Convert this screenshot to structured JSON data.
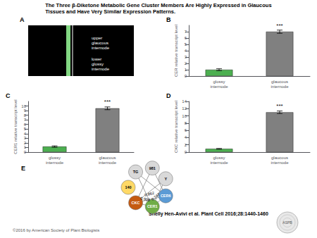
{
  "title": "The Three β-Diketone Metabolic Gene Cluster Members Are Highly Expressed in Glaucous\nTissues and Have Very Similar Expression Patterns.",
  "annotations": [
    "Shelly Hen-Avivi et al. Plant Cell 2016;28:1440-1460",
    "©2016 by American Society of Plant Biologists",
    "ASPB"
  ],
  "chart_data": [
    {
      "type": "illustration",
      "title": "A",
      "annotations": [
        "upper\nglaucous\ninternode",
        "lower\nglossy\ninternode"
      ]
    },
    {
      "type": "bar",
      "title": "B",
      "categories": [
        "glossy\ninternode",
        "glaucous\ninternode"
      ],
      "values": [
        1.0,
        7.0
      ],
      "error_bars": [
        0.15,
        0.25
      ],
      "colors": [
        "#4caf50",
        "#808080"
      ],
      "ylabel": "CER relative transcript level",
      "ylim": [
        0,
        8
      ],
      "yticks": [
        0,
        1,
        2,
        3,
        4,
        5,
        6,
        7
      ],
      "annotations": [
        {
          "text": "***",
          "category": "glaucous\ninternode"
        }
      ],
      "grid": false
    },
    {
      "type": "bar",
      "title": "C",
      "categories": [
        "glossy\ninternode",
        "glaucous\ninternode"
      ],
      "values": [
        1.2,
        9.5
      ],
      "error_bars": [
        0.15,
        0.3
      ],
      "colors": [
        "#4caf50",
        "#808080"
      ],
      "ylabel": "CER1 relative transcript level",
      "ylim": [
        0,
        11
      ],
      "yticks": [
        0,
        1,
        2,
        3,
        4,
        5,
        6,
        7,
        8,
        9,
        10
      ],
      "annotations": [
        {
          "text": "***",
          "category": "glaucous\ninternode"
        }
      ],
      "grid": false
    },
    {
      "type": "bar",
      "title": "D",
      "categories": [
        "glossy\ninternode",
        "glaucous\ninternode"
      ],
      "values": [
        0.9,
        11.0
      ],
      "error_bars": [
        0.1,
        0.35
      ],
      "colors": [
        "#4caf50",
        "#808080"
      ],
      "ylabel": "CKC relative transcript level",
      "ylim": [
        0,
        14
      ],
      "yticks": [
        0,
        2,
        4,
        6,
        8,
        10,
        12,
        14
      ],
      "annotations": [
        {
          "text": "***",
          "category": "glaucous\ninternode"
        }
      ],
      "grid": false
    },
    {
      "type": "graph",
      "title": "E",
      "nodes": [
        "CER6",
        "CER1",
        "CKC",
        "140",
        "TG",
        "981",
        "Y"
      ],
      "colors": [
        "#5b9bd5",
        "#70ad47",
        "#c55a11",
        "#ffd966",
        "#d9d9d9",
        "#d9d9d9",
        "#d9d9d9"
      ],
      "edges": [
        {
          "from": "CER6",
          "to": "CER1",
          "label": "0.747"
        },
        {
          "from": "CER6",
          "to": "CKC",
          "label": "0.862"
        },
        {
          "from": "CER1",
          "to": "CKC",
          "label": "0.908"
        },
        {
          "from": "CER6",
          "to": "TG"
        },
        {
          "from": "CER6",
          "to": "981"
        },
        {
          "from": "CER1",
          "to": "TG"
        },
        {
          "from": "CER1",
          "to": "Y"
        },
        {
          "from": "CKC",
          "to": "Y"
        },
        {
          "from": "CKC",
          "to": "981"
        }
      ]
    }
  ]
}
